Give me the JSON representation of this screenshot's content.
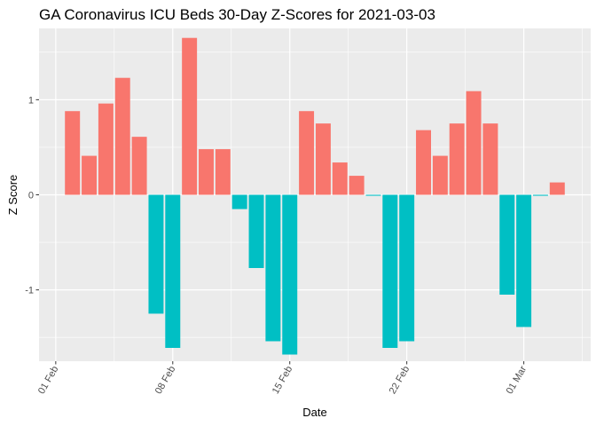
{
  "chart_data": {
    "type": "bar",
    "title": "GA Coronavirus ICU Beds 30-Day Z-Scores for 2021-03-03",
    "xlabel": "Date",
    "ylabel": "Z Score",
    "ylim": [
      -1.75,
      1.75
    ],
    "y_ticks": [
      -1,
      0,
      1
    ],
    "y_tick_labels": [
      "-1",
      "0",
      "1"
    ],
    "x_tick_labels": [
      "01 Feb",
      "08 Feb",
      "15 Feb",
      "22 Feb",
      "01 Mar"
    ],
    "x_tick_dates": [
      "2021-02-01",
      "2021-02-08",
      "2021-02-15",
      "2021-02-22",
      "2021-03-01"
    ],
    "x_range": [
      "2021-01-31",
      "2021-03-05"
    ],
    "grid": true,
    "legend": "none",
    "colors": {
      "positive": "#F8766D",
      "negative": "#00BFC4",
      "panel": "#EBEBEB",
      "grid": "#FFFFFF"
    },
    "x": [
      "2021-02-02",
      "2021-02-03",
      "2021-02-04",
      "2021-02-05",
      "2021-02-06",
      "2021-02-07",
      "2021-02-08",
      "2021-02-09",
      "2021-02-10",
      "2021-02-11",
      "2021-02-12",
      "2021-02-13",
      "2021-02-14",
      "2021-02-15",
      "2021-02-16",
      "2021-02-17",
      "2021-02-18",
      "2021-02-19",
      "2021-02-20",
      "2021-02-21",
      "2021-02-22",
      "2021-02-23",
      "2021-02-24",
      "2021-02-25",
      "2021-02-26",
      "2021-02-27",
      "2021-02-28",
      "2021-03-01",
      "2021-03-02",
      "2021-03-03"
    ],
    "values": [
      0.88,
      0.41,
      0.96,
      1.23,
      0.61,
      -1.25,
      -1.61,
      1.65,
      0.48,
      0.48,
      -0.15,
      -0.77,
      -1.54,
      -1.68,
      0.88,
      0.75,
      0.34,
      0.2,
      -0.01,
      -1.61,
      -1.54,
      0.68,
      0.41,
      0.75,
      1.09,
      0.75,
      -1.05,
      -1.39,
      -0.01,
      0.13
    ]
  }
}
